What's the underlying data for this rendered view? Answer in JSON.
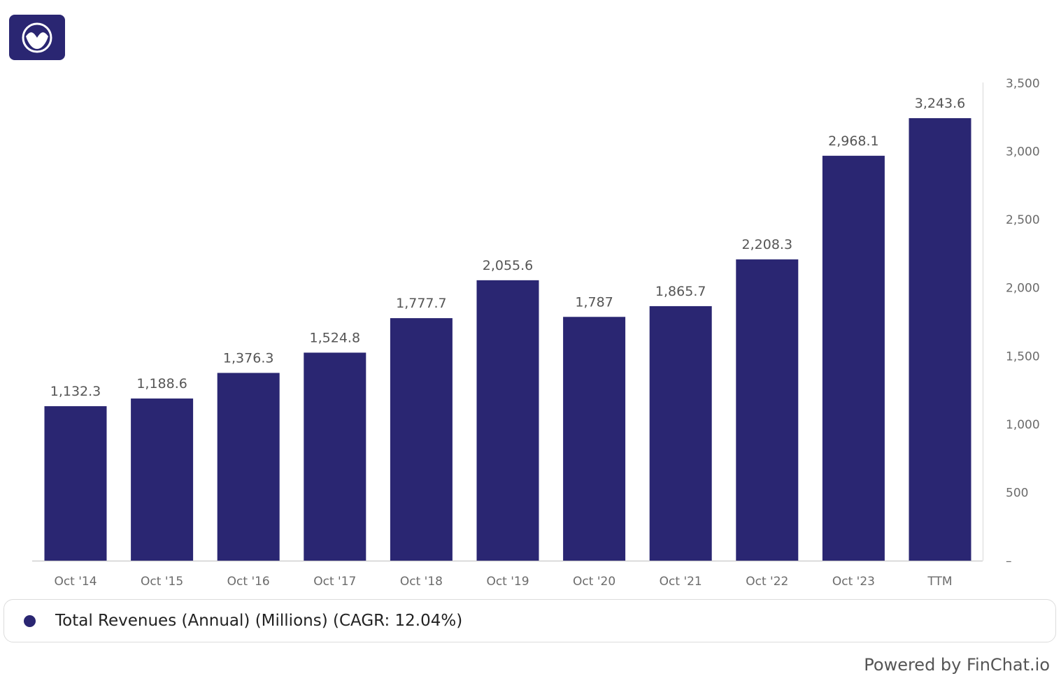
{
  "chart_data": {
    "type": "bar",
    "categories": [
      "Oct '14",
      "Oct '15",
      "Oct '16",
      "Oct '17",
      "Oct '18",
      "Oct '19",
      "Oct '20",
      "Oct '21",
      "Oct '22",
      "Oct '23",
      "TTM"
    ],
    "series": [
      {
        "name": "Total Revenues (Annual) (Millions) (CAGR: 12.04%)",
        "values": [
          1132.3,
          1188.6,
          1376.3,
          1524.8,
          1777.7,
          2055.6,
          1787,
          1865.7,
          2208.3,
          2968.1,
          3243.6
        ]
      }
    ],
    "data_labels": [
      "1,132.3",
      "1,188.6",
      "1,376.3",
      "1,524.8",
      "1,777.7",
      "2,055.6",
      "1,787",
      "1,865.7",
      "2,208.3",
      "2,968.1",
      "3,243.6"
    ],
    "y_ticks": [
      0,
      500,
      1000,
      1500,
      2000,
      2500,
      3000,
      3500
    ],
    "y_tick_labels": [
      "–",
      "500",
      "1,000",
      "1,500",
      "2,000",
      "2,500",
      "3,000",
      "3,500"
    ],
    "ylim": [
      0,
      3500
    ],
    "y_axis_position": "right",
    "grid": false,
    "legend_position": "bottom",
    "bar_color": "#2a2672"
  },
  "legend": {
    "label": "Total Revenues (Annual) (Millions) (CAGR: 12.04%)",
    "color": "#2a2672"
  },
  "footer": {
    "powered_by": "Powered by FinChat.io"
  },
  "logo": {
    "icon": "finchat-logo-icon",
    "color": "#2a2672"
  }
}
